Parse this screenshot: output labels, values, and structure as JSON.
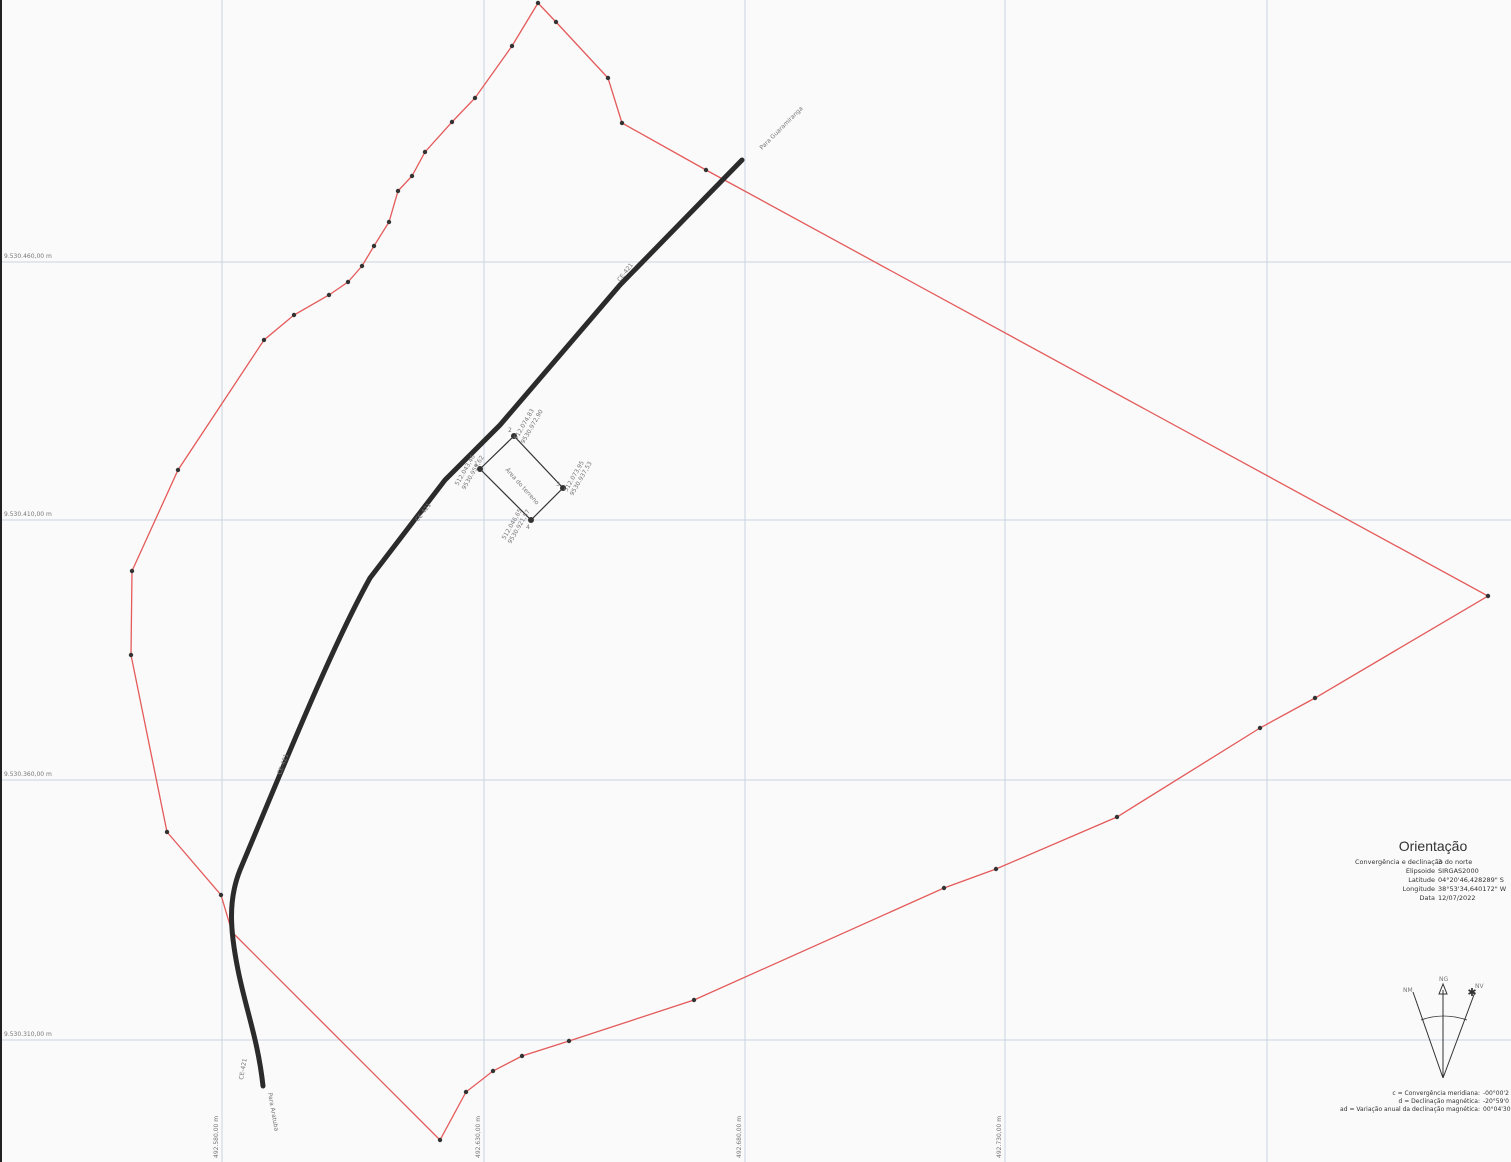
{
  "colors": {
    "perimeter": "#e45a5a",
    "road": "#2b2b2b",
    "grid": "#c9d3e0",
    "vertex": "#333333",
    "parcel": "#333333"
  },
  "grid": {
    "h_labels": [
      "9.530.460,00 m",
      "9.530.410,00 m",
      "9.530.360,00 m",
      "9.530.310,00 m"
    ],
    "v_labels": [
      "492.580,00 m",
      "492.630,00 m",
      "492.680,00 m",
      "492.730,00 m"
    ]
  },
  "road": {
    "labels": [
      "CE-421",
      "CE-421",
      "CE-421",
      "CE-421"
    ],
    "end_labels": [
      "Para Guaramiranga",
      "Para Aratuba"
    ]
  },
  "parcel": {
    "vertex_labels": [
      "1",
      "2",
      "3",
      "4"
    ],
    "coords": [
      [
        "512.043,46",
        "9530.959,62"
      ],
      [
        "512.074,83",
        "9530.972,90"
      ],
      [
        "512.073,95",
        "9530.937,53"
      ],
      [
        "512.046,65",
        "9530.921,57"
      ]
    ],
    "name": "Área do terreno"
  },
  "orientation": {
    "title": "Orientação",
    "rows": [
      {
        "key": "Convergência e declinação do norte",
        "value": "3"
      },
      {
        "key": "Elipsoide",
        "value": "SIRGAS2000"
      },
      {
        "key": "Latitude",
        "value": "04°20'46,428289\" S"
      },
      {
        "key": "Longitude",
        "value": "38°53'34,640172\" W"
      },
      {
        "key": "Data",
        "value": "12/07/2022"
      }
    ],
    "compass": {
      "ng": "NG",
      "nm": "NM",
      "nv": "NV"
    }
  },
  "notes": [
    {
      "key": "c = Convergência meridiana:",
      "value": "-00°00'2"
    },
    {
      "key": "d = Declinação magnética:",
      "value": "-20°59'0"
    },
    {
      "key": "ad = Variação anual da declinação magnética:",
      "value": "00°04'30"
    }
  ]
}
